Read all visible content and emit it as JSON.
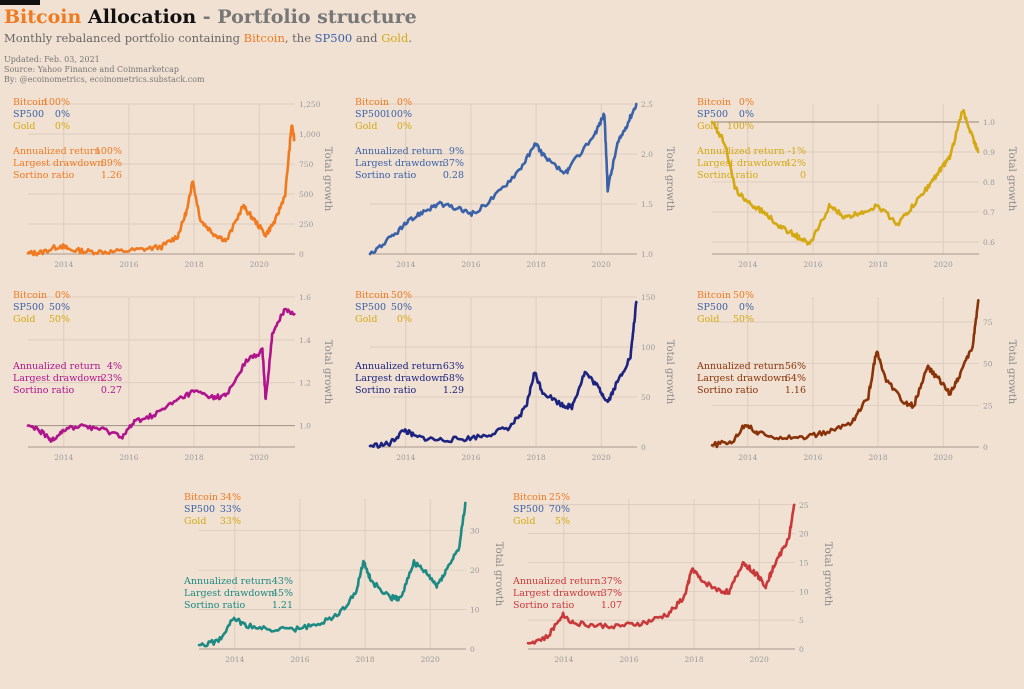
{
  "header": {
    "title_bitcoin": "Bitcoin",
    "title_allocation": "Allocation",
    "title_sep": "-",
    "title_rest": "Portfolio structure",
    "subtitle_pre": "Monthly rebalanced portfolio containing",
    "subtitle_btc": "Bitcoin",
    "subtitle_mid1": ", the",
    "subtitle_sp": "SP500",
    "subtitle_mid2": "and",
    "subtitle_gold": "Gold",
    "subtitle_end": ".",
    "updated": "Updated: Feb. 03, 2021",
    "source": "Source: Yahoo Finance and Coinmarketcap",
    "by": "By: @ecoinometrics, ecoinometrics.substack.com"
  },
  "colors": {
    "bitcoin": "#f07a20",
    "sp500": "#3a62a8",
    "gold": "#d4a913",
    "text": "#111111",
    "grey": "#777777"
  },
  "chart_data": [
    {
      "type": "line",
      "color": "#f07a20",
      "alloc": [
        {
          "label": "Bitcoin",
          "value": "100%"
        },
        {
          "label": "SP500",
          "value": "0%"
        },
        {
          "label": "Gold",
          "value": "0%"
        }
      ],
      "stats": [
        {
          "label": "Annualized return",
          "value": "100%"
        },
        {
          "label": "Largest drawdown",
          "value": "89%"
        },
        {
          "label": "Sortino ratio",
          "value": "1.26"
        }
      ],
      "ylabel": "Total growth",
      "xticks": [
        2014,
        2016,
        2018,
        2020
      ],
      "yticks": [
        0,
        250,
        500,
        750,
        1000,
        1250
      ],
      "ytick_labels": [
        "0",
        "250",
        "500",
        "750",
        "1,000",
        "1,250"
      ],
      "ylim": [
        0,
        1250
      ],
      "ref": null,
      "xlim": [
        2012.9,
        2021.1
      ],
      "x": [
        2012.9,
        2013.3,
        2013.9,
        2014.2,
        2014.8,
        2015.5,
        2016.3,
        2017.0,
        2017.5,
        2017.8,
        2017.95,
        2018.2,
        2018.6,
        2019.0,
        2019.5,
        2019.8,
        2020.2,
        2020.5,
        2020.8,
        2021.0,
        2021.08
      ],
      "values": [
        5,
        12,
        70,
        35,
        20,
        18,
        35,
        60,
        150,
        380,
        620,
        280,
        170,
        110,
        400,
        300,
        160,
        280,
        500,
        1080,
        950
      ]
    },
    {
      "type": "line",
      "color": "#3a62a8",
      "alloc": [
        {
          "label": "Bitcoin",
          "value": "0%"
        },
        {
          "label": "SP500",
          "value": "100%"
        },
        {
          "label": "Gold",
          "value": "0%"
        }
      ],
      "stats": [
        {
          "label": "Annualized return",
          "value": "9%"
        },
        {
          "label": "Largest drawdown",
          "value": "37%"
        },
        {
          "label": "Sortino ratio",
          "value": "0.28"
        }
      ],
      "ylabel": "Total growth",
      "xticks": [
        2014,
        2016,
        2018,
        2020
      ],
      "yticks": [
        1.0,
        1.5,
        2.0,
        2.5
      ],
      "ytick_labels": [
        "1.0",
        "1.5",
        "2.0",
        "2.5"
      ],
      "ylim": [
        1.0,
        2.5
      ],
      "ref": null,
      "xlim": [
        2012.9,
        2021.1
      ],
      "x": [
        2012.9,
        2013.5,
        2014.0,
        2014.5,
        2015.0,
        2015.6,
        2016.1,
        2016.8,
        2017.5,
        2018.0,
        2018.3,
        2018.9,
        2019.0,
        2019.8,
        2020.1,
        2020.2,
        2020.5,
        2020.8,
        2021.08
      ],
      "values": [
        1.0,
        1.15,
        1.3,
        1.42,
        1.5,
        1.45,
        1.4,
        1.6,
        1.85,
        2.1,
        1.95,
        1.8,
        1.85,
        2.2,
        2.4,
        1.65,
        2.1,
        2.3,
        2.5
      ]
    },
    {
      "type": "line",
      "color": "#d4a913",
      "alloc": [
        {
          "label": "Bitcoin",
          "value": "0%"
        },
        {
          "label": "SP500",
          "value": "0%"
        },
        {
          "label": "Gold",
          "value": "100%"
        }
      ],
      "stats": [
        {
          "label": "Annualized return",
          "value": "-1%"
        },
        {
          "label": "Largest drawdown",
          "value": "42%"
        },
        {
          "label": "Sortino ratio",
          "value": "0"
        }
      ],
      "ylabel": "Total growth",
      "xticks": [
        2014,
        2016,
        2018,
        2020
      ],
      "yticks": [
        0.6,
        0.7,
        0.8,
        0.9,
        1.0
      ],
      "ytick_labels": [
        "0.6",
        "0.7",
        "0.8",
        "0.9",
        "1.0"
      ],
      "ylim": [
        0.56,
        1.06
      ],
      "ref": 1.0,
      "xlim": [
        2012.9,
        2021.1
      ],
      "x": [
        2012.9,
        2013.3,
        2013.6,
        2014.0,
        2014.5,
        2015.0,
        2015.5,
        2015.9,
        2016.5,
        2017.0,
        2017.5,
        2018.0,
        2018.6,
        2019.0,
        2019.5,
        2019.9,
        2020.2,
        2020.6,
        2020.9,
        2021.08
      ],
      "values": [
        1.0,
        0.93,
        0.78,
        0.73,
        0.7,
        0.65,
        0.62,
        0.59,
        0.72,
        0.68,
        0.7,
        0.72,
        0.66,
        0.71,
        0.78,
        0.84,
        0.88,
        1.04,
        0.95,
        0.9
      ]
    },
    {
      "type": "line",
      "color": "#b0148c",
      "alloc": [
        {
          "label": "Bitcoin",
          "value": "0%"
        },
        {
          "label": "SP500",
          "value": "50%"
        },
        {
          "label": "Gold",
          "value": "50%"
        }
      ],
      "stats": [
        {
          "label": "Annualized return",
          "value": "4%"
        },
        {
          "label": "Largest drawdown",
          "value": "23%"
        },
        {
          "label": "Sortino ratio",
          "value": "0.27"
        }
      ],
      "ylabel": "Total growth",
      "xticks": [
        2014,
        2016,
        2018,
        2020
      ],
      "yticks": [
        1.0,
        1.2,
        1.4,
        1.6
      ],
      "ytick_labels": [
        "1.0",
        "1.2",
        "1.4",
        "1.6"
      ],
      "ylim": [
        0.9,
        1.6
      ],
      "ref": 1.0,
      "xlim": [
        2012.9,
        2021.1
      ],
      "x": [
        2012.9,
        2013.3,
        2013.6,
        2014.0,
        2014.6,
        2015.2,
        2015.8,
        2016.2,
        2016.8,
        2017.5,
        2018.0,
        2018.6,
        2019.0,
        2019.6,
        2020.1,
        2020.2,
        2020.4,
        2020.8,
        2021.08
      ],
      "values": [
        1.0,
        0.97,
        0.93,
        0.98,
        1.0,
        0.98,
        0.95,
        1.02,
        1.05,
        1.12,
        1.16,
        1.13,
        1.14,
        1.3,
        1.35,
        1.12,
        1.42,
        1.55,
        1.52
      ]
    },
    {
      "type": "line",
      "color": "#1c2480",
      "alloc": [
        {
          "label": "Bitcoin",
          "value": "50%"
        },
        {
          "label": "SP500",
          "value": "50%"
        },
        {
          "label": "Gold",
          "value": "0%"
        }
      ],
      "stats": [
        {
          "label": "Annualized return",
          "value": "63%"
        },
        {
          "label": "Largest drawdown",
          "value": "58%"
        },
        {
          "label": "Sortino ratio",
          "value": "1.29"
        }
      ],
      "ylabel": "Total growth",
      "xticks": [
        2014,
        2016,
        2018,
        2020
      ],
      "yticks": [
        0,
        50,
        100,
        150
      ],
      "ytick_labels": [
        "0",
        "50",
        "100",
        "150"
      ],
      "ylim": [
        0,
        150
      ],
      "ref": null,
      "xlim": [
        2012.9,
        2021.1
      ],
      "x": [
        2012.9,
        2013.5,
        2013.95,
        2014.3,
        2015.0,
        2015.8,
        2016.5,
        2017.2,
        2017.7,
        2017.95,
        2018.2,
        2018.8,
        2019.1,
        2019.5,
        2019.9,
        2020.2,
        2020.5,
        2020.9,
        2021.08
      ],
      "values": [
        1,
        3,
        17,
        10,
        7,
        8,
        12,
        20,
        40,
        75,
        55,
        42,
        40,
        75,
        60,
        45,
        65,
        90,
        145
      ]
    },
    {
      "type": "line",
      "color": "#8a3308",
      "alloc": [
        {
          "label": "Bitcoin",
          "value": "50%"
        },
        {
          "label": "SP500",
          "value": "0%"
        },
        {
          "label": "Gold",
          "value": "50%"
        }
      ],
      "stats": [
        {
          "label": "Annualized return",
          "value": "56%"
        },
        {
          "label": "Largest drawdown",
          "value": "64%"
        },
        {
          "label": "Sortino ratio",
          "value": "1.16"
        }
      ],
      "ylabel": "Total growth",
      "xticks": [
        2014,
        2016,
        2018,
        2020
      ],
      "yticks": [
        0,
        25,
        50,
        75
      ],
      "ytick_labels": [
        "0",
        "25",
        "50",
        "75"
      ],
      "ylim": [
        0,
        90
      ],
      "ref": null,
      "xlim": [
        2012.9,
        2021.1
      ],
      "x": [
        2012.9,
        2013.5,
        2013.95,
        2014.3,
        2015.0,
        2015.8,
        2016.5,
        2017.2,
        2017.7,
        2017.95,
        2018.2,
        2018.8,
        2019.1,
        2019.5,
        2019.9,
        2020.2,
        2020.5,
        2020.9,
        2021.08
      ],
      "values": [
        1,
        3,
        14,
        8,
        6,
        6,
        9,
        15,
        30,
        58,
        42,
        26,
        25,
        48,
        40,
        32,
        43,
        60,
        88
      ]
    },
    {
      "type": "line",
      "color": "#1d8a83",
      "alloc": [
        {
          "label": "Bitcoin",
          "value": "34%"
        },
        {
          "label": "SP500",
          "value": "33%"
        },
        {
          "label": "Gold",
          "value": "33%"
        }
      ],
      "stats": [
        {
          "label": "Annualized return",
          "value": "43%"
        },
        {
          "label": "Largest drawdown",
          "value": "45%"
        },
        {
          "label": "Sortino ratio",
          "value": "1.21"
        }
      ],
      "ylabel": "Total growth",
      "xticks": [
        2014,
        2016,
        2018,
        2020
      ],
      "yticks": [
        0,
        10,
        20,
        30
      ],
      "ytick_labels": [
        "0",
        "10",
        "20",
        "30"
      ],
      "ylim": [
        0,
        38
      ],
      "ref": null,
      "xlim": [
        2012.9,
        2021.1
      ],
      "x": [
        2012.9,
        2013.5,
        2013.95,
        2014.3,
        2015.0,
        2015.8,
        2016.5,
        2017.2,
        2017.7,
        2017.95,
        2018.2,
        2018.8,
        2019.1,
        2019.5,
        2019.9,
        2020.2,
        2020.5,
        2020.9,
        2021.08
      ],
      "values": [
        1,
        2,
        8,
        6,
        5,
        5,
        6,
        9,
        14,
        22,
        17,
        13,
        13,
        22,
        19,
        16,
        20,
        26,
        37
      ]
    },
    {
      "type": "line",
      "color": "#c9393a",
      "alloc": [
        {
          "label": "Bitcoin",
          "value": "25%"
        },
        {
          "label": "SP500",
          "value": "70%"
        },
        {
          "label": "Gold",
          "value": "5%"
        }
      ],
      "stats": [
        {
          "label": "Annualized return",
          "value": "37%"
        },
        {
          "label": "Largest drawdown",
          "value": "37%"
        },
        {
          "label": "Sortino ratio",
          "value": "1.07"
        }
      ],
      "ylabel": "Total growth",
      "xticks": [
        2014,
        2016,
        2018,
        2020
      ],
      "yticks": [
        0,
        5,
        10,
        15,
        20,
        25
      ],
      "ytick_labels": [
        "0",
        "5",
        "10",
        "15",
        "20",
        "25"
      ],
      "ylim": [
        0,
        26
      ],
      "ref": null,
      "xlim": [
        2012.9,
        2021.1
      ],
      "x": [
        2012.9,
        2013.5,
        2013.95,
        2014.3,
        2015.0,
        2015.8,
        2016.5,
        2017.2,
        2017.7,
        2017.95,
        2018.2,
        2018.8,
        2019.1,
        2019.5,
        2019.9,
        2020.2,
        2020.5,
        2020.9,
        2021.08
      ],
      "values": [
        1,
        2,
        6,
        4.5,
        4,
        4,
        4.5,
        6,
        9,
        14,
        12,
        10,
        10,
        15,
        13,
        11,
        15,
        19,
        25
      ]
    }
  ]
}
